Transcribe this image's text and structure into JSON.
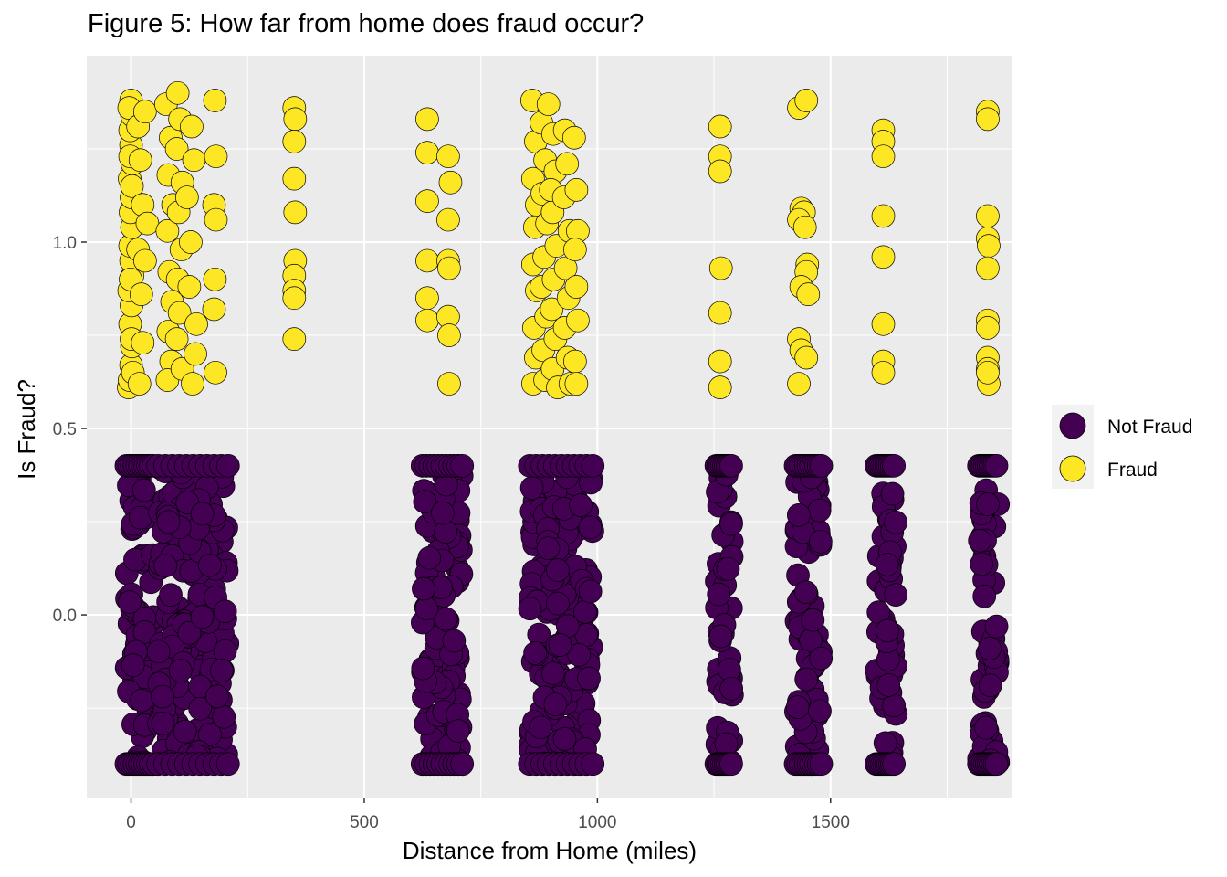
{
  "chart_data": {
    "type": "scatter",
    "title": "Figure 5: How far from home does fraud occur?",
    "xlabel": "Distance from Home (miles)",
    "ylabel": "Is Fraud?",
    "xlim": [
      -95,
      1890
    ],
    "ylim": [
      -0.49,
      1.5
    ],
    "x_ticks": [
      0,
      500,
      1000,
      1500
    ],
    "x_tick_labels": [
      "0",
      "500",
      "1000",
      "1500"
    ],
    "y_ticks": [
      0.0,
      0.5,
      1.0
    ],
    "y_tick_labels": [
      "0.0",
      "0.5",
      "1.0"
    ],
    "grid": true,
    "background": "#ebebeb",
    "legend_position": "right",
    "legend": [
      {
        "label": "Not Fraud",
        "color": "#440154"
      },
      {
        "label": "Fraud",
        "color": "#fde725"
      }
    ],
    "series": [
      {
        "name": "Not Fraud",
        "color": "#440154",
        "value": 0,
        "jitter_clusters": [
          {
            "x": [
              -10,
              48
            ],
            "y": [
              -0.4,
              0.4
            ]
          },
          {
            "x": [
              58,
              208
            ],
            "y": [
              -0.4,
              0.4
            ]
          },
          {
            "x": [
              625,
              710
            ],
            "y": [
              -0.4,
              0.4
            ]
          },
          {
            "x": [
              855,
              990
            ],
            "y": [
              -0.4,
              0.4
            ]
          },
          {
            "x": [
              1255,
              1290
            ],
            "y": [
              -0.4,
              0.4
            ]
          },
          {
            "x": [
              1425,
              1480
            ],
            "y": [
              -0.4,
              0.4
            ]
          },
          {
            "x": [
              1598,
              1640
            ],
            "y": [
              -0.4,
              0.4
            ]
          },
          {
            "x": [
              1818,
              1860
            ],
            "y": [
              -0.4,
              0.4
            ]
          }
        ]
      },
      {
        "name": "Fraud",
        "color": "#fde725",
        "value": 1,
        "points": [
          [
            -5,
            0.61
          ],
          [
            -3,
            0.63
          ],
          [
            0,
            0.67
          ],
          [
            2,
            0.72
          ],
          [
            -2,
            0.78
          ],
          [
            1,
            0.83
          ],
          [
            -4,
            0.87
          ],
          [
            3,
            0.91
          ],
          [
            0,
            0.95
          ],
          [
            -2,
            0.99
          ],
          [
            2,
            1.04
          ],
          [
            -1,
            1.08
          ],
          [
            1,
            1.12
          ],
          [
            -3,
            1.17
          ],
          [
            3,
            1.21
          ],
          [
            0,
            1.26
          ],
          [
            -2,
            1.3
          ],
          [
            2,
            1.34
          ],
          [
            0,
            1.38
          ],
          [
            -4,
            1.36
          ],
          [
            4,
            0.65
          ],
          [
            1,
            0.74
          ],
          [
            -1,
            0.9
          ],
          [
            2,
            1.15
          ],
          [
            -2,
            1.23
          ],
          [
            15,
            1.31
          ],
          [
            20,
            1.22
          ],
          [
            25,
            1.1
          ],
          [
            15,
            0.98
          ],
          [
            22,
            0.86
          ],
          [
            25,
            0.73
          ],
          [
            18,
            0.62
          ],
          [
            30,
            0.95
          ],
          [
            35,
            1.05
          ],
          [
            30,
            1.35
          ],
          [
            75,
            1.37
          ],
          [
            85,
            1.28
          ],
          [
            80,
            1.18
          ],
          [
            90,
            1.1
          ],
          [
            78,
            1.03
          ],
          [
            82,
            0.92
          ],
          [
            88,
            0.84
          ],
          [
            80,
            0.76
          ],
          [
            86,
            0.68
          ],
          [
            78,
            0.63
          ],
          [
            100,
            1.4
          ],
          [
            105,
            1.33
          ],
          [
            98,
            1.25
          ],
          [
            110,
            1.16
          ],
          [
            102,
            1.08
          ],
          [
            108,
            0.98
          ],
          [
            100,
            0.9
          ],
          [
            104,
            0.81
          ],
          [
            98,
            0.74
          ],
          [
            110,
            0.66
          ],
          [
            130,
            1.31
          ],
          [
            135,
            1.22
          ],
          [
            128,
            1.0
          ],
          [
            140,
            0.78
          ],
          [
            132,
            0.62
          ],
          [
            125,
            0.88
          ],
          [
            120,
            1.12
          ],
          [
            138,
            0.7
          ],
          [
            180,
            1.38
          ],
          [
            182,
            1.23
          ],
          [
            178,
            1.1
          ],
          [
            182,
            1.06
          ],
          [
            180,
            0.9
          ],
          [
            178,
            0.82
          ],
          [
            181,
            0.65
          ],
          [
            350,
            1.36
          ],
          [
            352,
            1.33
          ],
          [
            350,
            1.27
          ],
          [
            350,
            1.17
          ],
          [
            352,
            1.08
          ],
          [
            352,
            0.95
          ],
          [
            350,
            0.91
          ],
          [
            350,
            0.87
          ],
          [
            350,
            0.85
          ],
          [
            350,
            0.74
          ],
          [
            635,
            1.33
          ],
          [
            635,
            1.24
          ],
          [
            635,
            1.11
          ],
          [
            635,
            0.95
          ],
          [
            635,
            0.85
          ],
          [
            635,
            0.79
          ],
          [
            680,
            1.23
          ],
          [
            685,
            1.16
          ],
          [
            680,
            1.06
          ],
          [
            680,
            0.95
          ],
          [
            682,
            0.93
          ],
          [
            680,
            0.8
          ],
          [
            682,
            0.75
          ],
          [
            682,
            0.62
          ],
          [
            860,
            1.38
          ],
          [
            868,
            1.27
          ],
          [
            862,
            1.17
          ],
          [
            870,
            1.1
          ],
          [
            866,
            1.04
          ],
          [
            862,
            0.94
          ],
          [
            870,
            0.87
          ],
          [
            864,
            0.77
          ],
          [
            868,
            0.69
          ],
          [
            862,
            0.62
          ],
          [
            880,
            1.32
          ],
          [
            888,
            1.22
          ],
          [
            882,
            1.13
          ],
          [
            892,
            1.05
          ],
          [
            886,
            0.96
          ],
          [
            880,
            0.88
          ],
          [
            890,
            0.8
          ],
          [
            884,
            0.71
          ],
          [
            888,
            0.63
          ],
          [
            895,
            1.37
          ],
          [
            905,
            1.29
          ],
          [
            910,
            1.19
          ],
          [
            904,
            1.08
          ],
          [
            912,
            0.99
          ],
          [
            906,
            0.9
          ],
          [
            902,
            0.82
          ],
          [
            910,
            0.74
          ],
          [
            904,
            0.66
          ],
          [
            915,
            0.61
          ],
          [
            900,
            1.14
          ],
          [
            930,
            1.3
          ],
          [
            935,
            1.21
          ],
          [
            928,
            1.12
          ],
          [
            940,
            1.03
          ],
          [
            932,
            0.93
          ],
          [
            938,
            0.85
          ],
          [
            930,
            0.77
          ],
          [
            936,
            0.69
          ],
          [
            942,
            0.62
          ],
          [
            950,
            1.28
          ],
          [
            955,
            1.14
          ],
          [
            958,
            1.03
          ],
          [
            952,
            0.98
          ],
          [
            955,
            0.88
          ],
          [
            958,
            0.79
          ],
          [
            952,
            0.68
          ],
          [
            955,
            0.62
          ],
          [
            1263,
            1.31
          ],
          [
            1263,
            1.23
          ],
          [
            1263,
            1.19
          ],
          [
            1265,
            0.93
          ],
          [
            1263,
            0.81
          ],
          [
            1263,
            0.68
          ],
          [
            1263,
            0.61
          ],
          [
            1432,
            1.36
          ],
          [
            1448,
            1.38
          ],
          [
            1437,
            1.09
          ],
          [
            1443,
            1.08
          ],
          [
            1432,
            1.06
          ],
          [
            1445,
            1.04
          ],
          [
            1450,
            0.94
          ],
          [
            1448,
            0.92
          ],
          [
            1437,
            0.88
          ],
          [
            1452,
            0.86
          ],
          [
            1432,
            0.74
          ],
          [
            1437,
            0.71
          ],
          [
            1448,
            0.69
          ],
          [
            1432,
            0.62
          ],
          [
            1613,
            1.3
          ],
          [
            1613,
            1.27
          ],
          [
            1613,
            1.23
          ],
          [
            1613,
            1.07
          ],
          [
            1613,
            0.96
          ],
          [
            1613,
            0.78
          ],
          [
            1613,
            0.68
          ],
          [
            1613,
            0.65
          ],
          [
            1837,
            1.35
          ],
          [
            1837,
            1.33
          ],
          [
            1837,
            1.07
          ],
          [
            1837,
            1.01
          ],
          [
            1839,
            0.99
          ],
          [
            1837,
            0.93
          ],
          [
            1837,
            0.79
          ],
          [
            1837,
            0.77
          ],
          [
            1837,
            0.69
          ],
          [
            1837,
            0.66
          ],
          [
            1839,
            0.62
          ],
          [
            1837,
            0.65
          ]
        ]
      }
    ]
  }
}
